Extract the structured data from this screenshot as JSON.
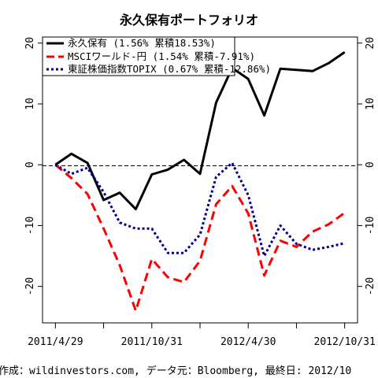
{
  "chart_data": {
    "type": "line",
    "title": "永久保有ポートフォリオ",
    "footer": "作成：wildinvestors.com, データ元：Bloomberg, 最終日: 2012/10",
    "ylim": [
      -26,
      21
    ],
    "y_ticks": [
      -20,
      -10,
      0,
      10,
      20
    ],
    "y_tick_labels": [
      "-20",
      "-10",
      "0",
      "10",
      "20"
    ],
    "x_ticks": [
      0,
      6,
      12,
      18
    ],
    "x_tick_labels": [
      "2011/4/29",
      "2011/10/31",
      "2012/4/30",
      "2012/10/31"
    ],
    "x_minor_ticks": [
      3,
      9,
      15
    ],
    "x_range": [
      -0.8,
      18.8
    ],
    "zero_line": true,
    "legend_position": "top-left",
    "series": [
      {
        "name": "永久保有 (1.56% 累積18.53%)",
        "color": "#000000",
        "dash": "solid",
        "x": [
          0,
          1,
          2,
          3,
          4,
          5,
          6,
          7,
          8,
          9,
          10,
          11,
          12,
          13,
          14,
          15,
          16,
          17,
          18
        ],
        "values": [
          0,
          1.8,
          0.3,
          -5.8,
          -4.6,
          -7.3,
          -1.6,
          -0.8,
          0.8,
          -1.5,
          10.2,
          15.9,
          14.1,
          8.1,
          15.8,
          15.6,
          15.4,
          16.7,
          18.5
        ]
      },
      {
        "name": "MSCIワールド-円 (1.54% 累積-7.91%)",
        "color": "#ff0000",
        "dash": "long",
        "x": [
          0,
          1,
          2,
          3,
          4,
          5,
          6,
          7,
          8,
          9,
          10,
          11,
          12,
          13,
          14,
          15,
          16,
          17,
          18
        ],
        "values": [
          0,
          -2.2,
          -4.8,
          -10.5,
          -16.5,
          -24.0,
          -15.5,
          -18.5,
          -19.3,
          -15.8,
          -6.5,
          -3.5,
          -8.0,
          -18.2,
          -12.5,
          -13.5,
          -11.0,
          -9.8,
          -7.9
        ]
      },
      {
        "name": "東証株価指数TOPIX (0.67% 累積-12.86%)",
        "color": "#00008b",
        "dash": "dotted",
        "x": [
          0,
          1,
          2,
          3,
          4,
          5,
          6,
          7,
          8,
          9,
          10,
          11,
          12,
          13,
          14,
          15,
          16,
          17,
          18
        ],
        "values": [
          0,
          -1.5,
          -0.5,
          -4.5,
          -9.5,
          -10.5,
          -10.5,
          -14.5,
          -14.5,
          -11.5,
          -2.0,
          0.3,
          -5.0,
          -15.0,
          -10.0,
          -13.0,
          -14.0,
          -13.5,
          -12.9
        ]
      }
    ]
  }
}
